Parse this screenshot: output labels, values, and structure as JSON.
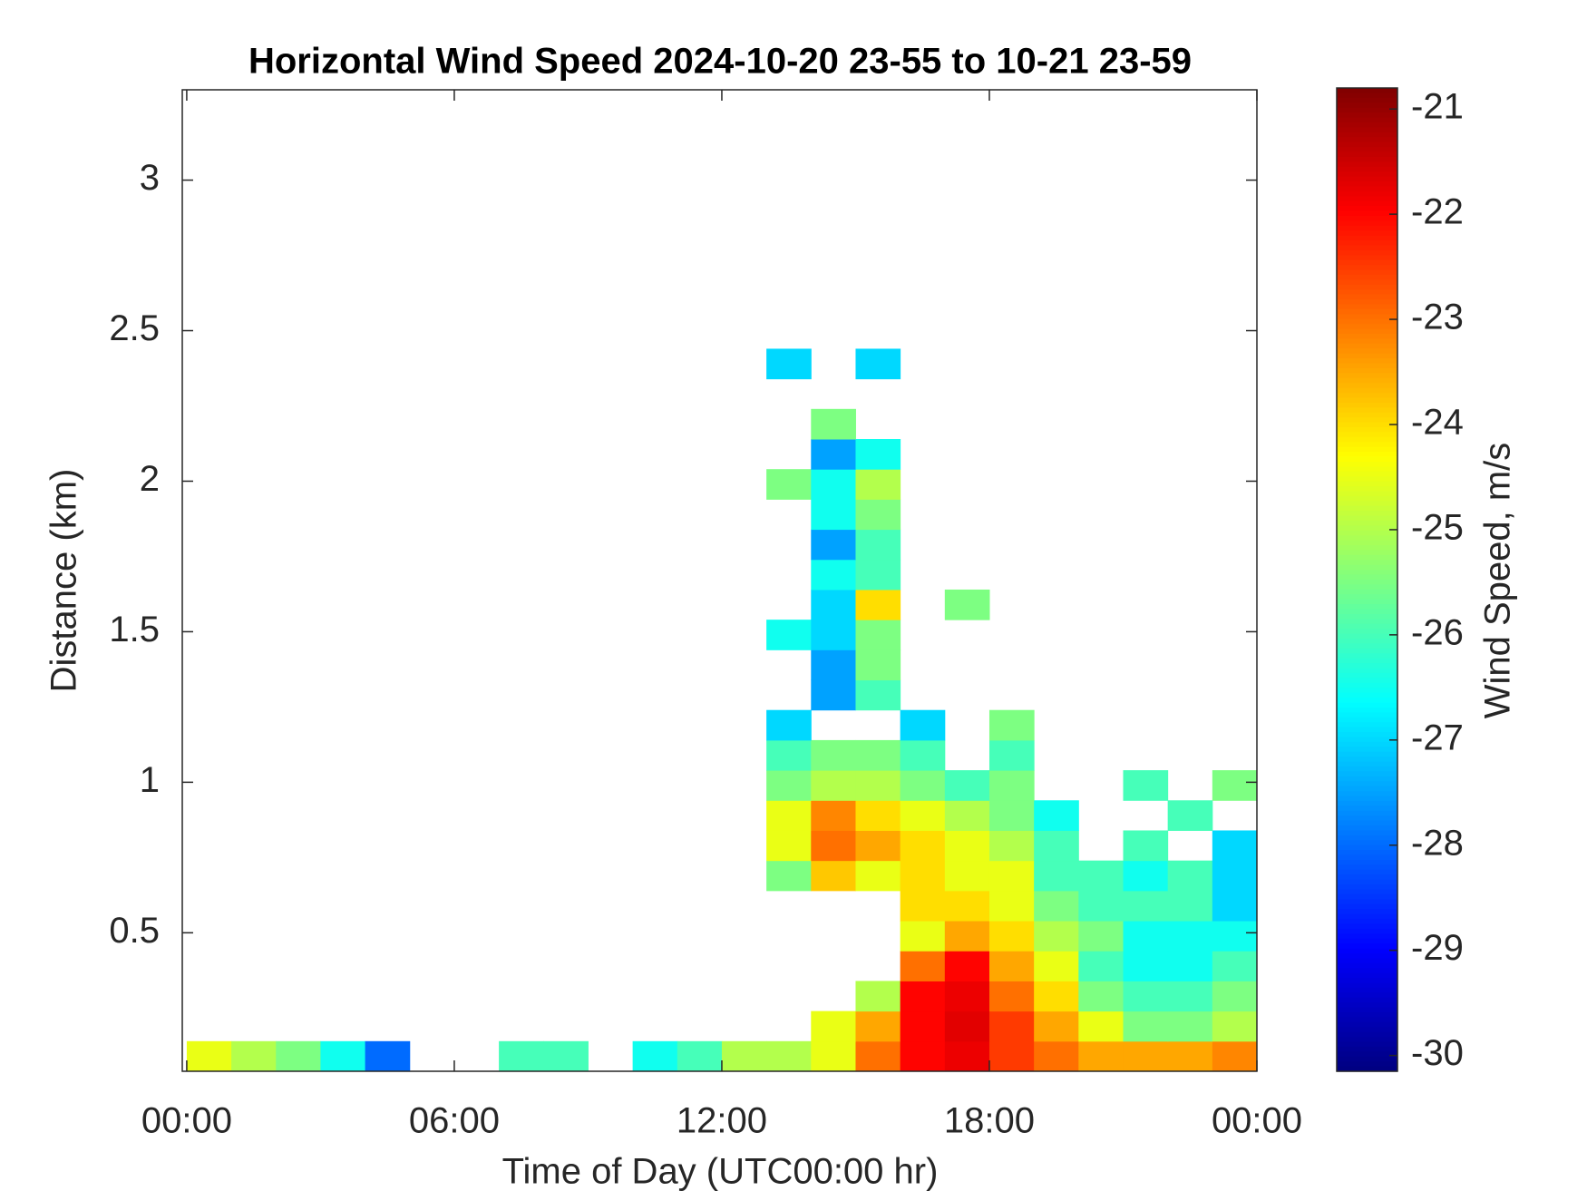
{
  "chart_data": {
    "type": "heatmap",
    "title": "Horizontal Wind Speed 2024-10-20 23-55 to 10-21 23-59",
    "xlabel": "Time of Day (UTC00:00 hr)",
    "ylabel": "Distance (km)",
    "colorbar_label": "Wind Speed, m/s",
    "colormap": "jet",
    "x": [
      0,
      1,
      2,
      3,
      4,
      5,
      6,
      7,
      8,
      9,
      10,
      11,
      12,
      13,
      14,
      15,
      16,
      17,
      18,
      19,
      20,
      21,
      22,
      23,
      24
    ],
    "y": [
      0.04,
      0.14,
      0.24,
      0.34,
      0.44,
      0.54,
      0.64,
      0.74,
      0.84,
      0.94,
      1.04,
      1.14,
      1.24,
      1.34,
      1.44,
      1.54,
      1.64,
      1.74,
      1.84,
      1.94,
      2.04,
      2.14,
      2.24,
      2.34,
      2.44
    ],
    "z": [
      [
        -24.5,
        -25,
        -25.5,
        -26.5,
        -28,
        null,
        null,
        -26,
        -26,
        null,
        -26.5,
        -26,
        -25,
        -25,
        -24.5,
        -23,
        -22,
        -21.8,
        -22.5,
        -23,
        -23.5,
        -23.5,
        -23.5,
        -23.2
      ],
      [
        null,
        null,
        null,
        null,
        null,
        null,
        null,
        null,
        null,
        null,
        null,
        null,
        null,
        null,
        -24.5,
        -23.5,
        -22,
        -21.7,
        -22.5,
        -23.5,
        -24.5,
        -25.5,
        -25.5,
        -25
      ],
      [
        null,
        null,
        null,
        null,
        null,
        null,
        null,
        null,
        null,
        null,
        null,
        null,
        null,
        null,
        null,
        -25,
        -22,
        -21.8,
        -23,
        -24,
        -25.5,
        -26,
        -26,
        -25.5
      ],
      [
        null,
        null,
        null,
        null,
        null,
        null,
        null,
        null,
        null,
        null,
        null,
        null,
        null,
        null,
        null,
        null,
        -23,
        -22,
        -23.5,
        -24.5,
        -26,
        -26.5,
        -26.5,
        -26
      ],
      [
        null,
        null,
        null,
        null,
        null,
        null,
        null,
        null,
        null,
        null,
        null,
        null,
        null,
        null,
        null,
        null,
        -24.5,
        -23.5,
        -24,
        -25,
        -25.5,
        -26.5,
        -26.5,
        -26.5
      ],
      [
        null,
        null,
        null,
        null,
        null,
        null,
        null,
        null,
        null,
        null,
        null,
        null,
        null,
        null,
        null,
        null,
        -24,
        -24,
        -24.5,
        -25.5,
        -26,
        -26,
        -26,
        -27
      ],
      [
        null,
        null,
        null,
        null,
        null,
        null,
        null,
        null,
        null,
        null,
        null,
        null,
        null,
        -25.5,
        -23.8,
        -24.5,
        -24,
        -24.5,
        -24.5,
        -26,
        -26,
        -26.5,
        -26,
        -27
      ],
      [
        null,
        null,
        null,
        null,
        null,
        null,
        null,
        null,
        null,
        null,
        null,
        null,
        null,
        -24.5,
        -23,
        -23.5,
        -24,
        -24.5,
        -25,
        -26,
        null,
        -26,
        null,
        -27
      ],
      [
        null,
        null,
        null,
        null,
        null,
        null,
        null,
        null,
        null,
        null,
        null,
        null,
        null,
        -24.5,
        -23.2,
        -24,
        -24.5,
        -25,
        -25.5,
        -26.5,
        null,
        null,
        -26,
        null
      ],
      [
        null,
        null,
        null,
        null,
        null,
        null,
        null,
        null,
        null,
        null,
        null,
        null,
        null,
        -25.5,
        -25,
        -25,
        -25.5,
        -26,
        -25.5,
        null,
        null,
        -26,
        null,
        -25.5
      ],
      [
        null,
        null,
        null,
        null,
        null,
        null,
        null,
        null,
        null,
        null,
        null,
        null,
        null,
        -26,
        -25.5,
        -25.5,
        -26,
        null,
        -26,
        null,
        null,
        null,
        null,
        null
      ],
      [
        null,
        null,
        null,
        null,
        null,
        null,
        null,
        null,
        null,
        null,
        null,
        null,
        null,
        -27,
        null,
        null,
        -27,
        null,
        -25.5,
        null,
        null,
        null,
        null,
        null
      ],
      [
        null,
        null,
        null,
        null,
        null,
        null,
        null,
        null,
        null,
        null,
        null,
        null,
        null,
        null,
        -27.5,
        -26,
        null,
        null,
        null,
        null,
        null,
        null,
        null,
        null
      ],
      [
        null,
        null,
        null,
        null,
        null,
        null,
        null,
        null,
        null,
        null,
        null,
        null,
        null,
        null,
        -27.5,
        -25.5,
        null,
        null,
        null,
        null,
        null,
        null,
        null,
        null
      ],
      [
        null,
        null,
        null,
        null,
        null,
        null,
        null,
        null,
        null,
        null,
        null,
        null,
        null,
        -26.5,
        -27,
        -25.5,
        null,
        null,
        null,
        null,
        null,
        null,
        null,
        null
      ],
      [
        null,
        null,
        null,
        null,
        null,
        null,
        null,
        null,
        null,
        null,
        null,
        null,
        null,
        null,
        -27,
        -24,
        null,
        -25.5,
        null,
        null,
        null,
        null,
        null,
        null
      ],
      [
        null,
        null,
        null,
        null,
        null,
        null,
        null,
        null,
        null,
        null,
        null,
        null,
        null,
        null,
        -26.5,
        -26,
        null,
        null,
        null,
        null,
        null,
        null,
        null,
        null
      ],
      [
        null,
        null,
        null,
        null,
        null,
        null,
        null,
        null,
        null,
        null,
        null,
        null,
        null,
        null,
        -27.5,
        -26,
        null,
        null,
        null,
        null,
        null,
        null,
        null,
        null
      ],
      [
        null,
        null,
        null,
        null,
        null,
        null,
        null,
        null,
        null,
        null,
        null,
        null,
        null,
        null,
        -26.5,
        -25.5,
        null,
        null,
        null,
        null,
        null,
        null,
        null,
        null
      ],
      [
        null,
        null,
        null,
        null,
        null,
        null,
        null,
        null,
        null,
        null,
        null,
        null,
        null,
        -25.5,
        -26.5,
        -25,
        null,
        null,
        null,
        null,
        null,
        null,
        null,
        null
      ],
      [
        null,
        null,
        null,
        null,
        null,
        null,
        null,
        null,
        null,
        null,
        null,
        null,
        null,
        null,
        -27.5,
        -26.5,
        null,
        null,
        null,
        null,
        null,
        null,
        null,
        null
      ],
      [
        null,
        null,
        null,
        null,
        null,
        null,
        null,
        null,
        null,
        null,
        null,
        null,
        null,
        null,
        -25.5,
        null,
        null,
        null,
        null,
        null,
        null,
        null,
        null,
        null
      ],
      [
        null,
        null,
        null,
        null,
        null,
        null,
        null,
        null,
        null,
        null,
        null,
        null,
        null,
        null,
        null,
        null,
        null,
        null,
        null,
        null,
        null,
        null,
        null,
        null
      ],
      [
        null,
        null,
        null,
        null,
        null,
        null,
        null,
        null,
        null,
        null,
        null,
        null,
        null,
        -27,
        null,
        -27,
        null,
        null,
        null,
        null,
        null,
        null,
        null,
        null
      ]
    ],
    "xlim": [
      -0.1,
      24
    ],
    "xticks": [
      {
        "value": 0,
        "label": "00:00"
      },
      {
        "value": 6,
        "label": "06:00"
      },
      {
        "value": 12,
        "label": "12:00"
      },
      {
        "value": 18,
        "label": "18:00"
      },
      {
        "value": 24,
        "label": "00:00"
      }
    ],
    "ylim": [
      0.04,
      3.3
    ],
    "yticks": [
      0.5,
      1,
      1.5,
      2,
      2.5,
      3
    ],
    "clim": [
      -30.15,
      -20.8
    ],
    "cticks": [
      -30,
      -29,
      -28,
      -27,
      -26,
      -25,
      -24,
      -23,
      -22,
      -21
    ]
  }
}
